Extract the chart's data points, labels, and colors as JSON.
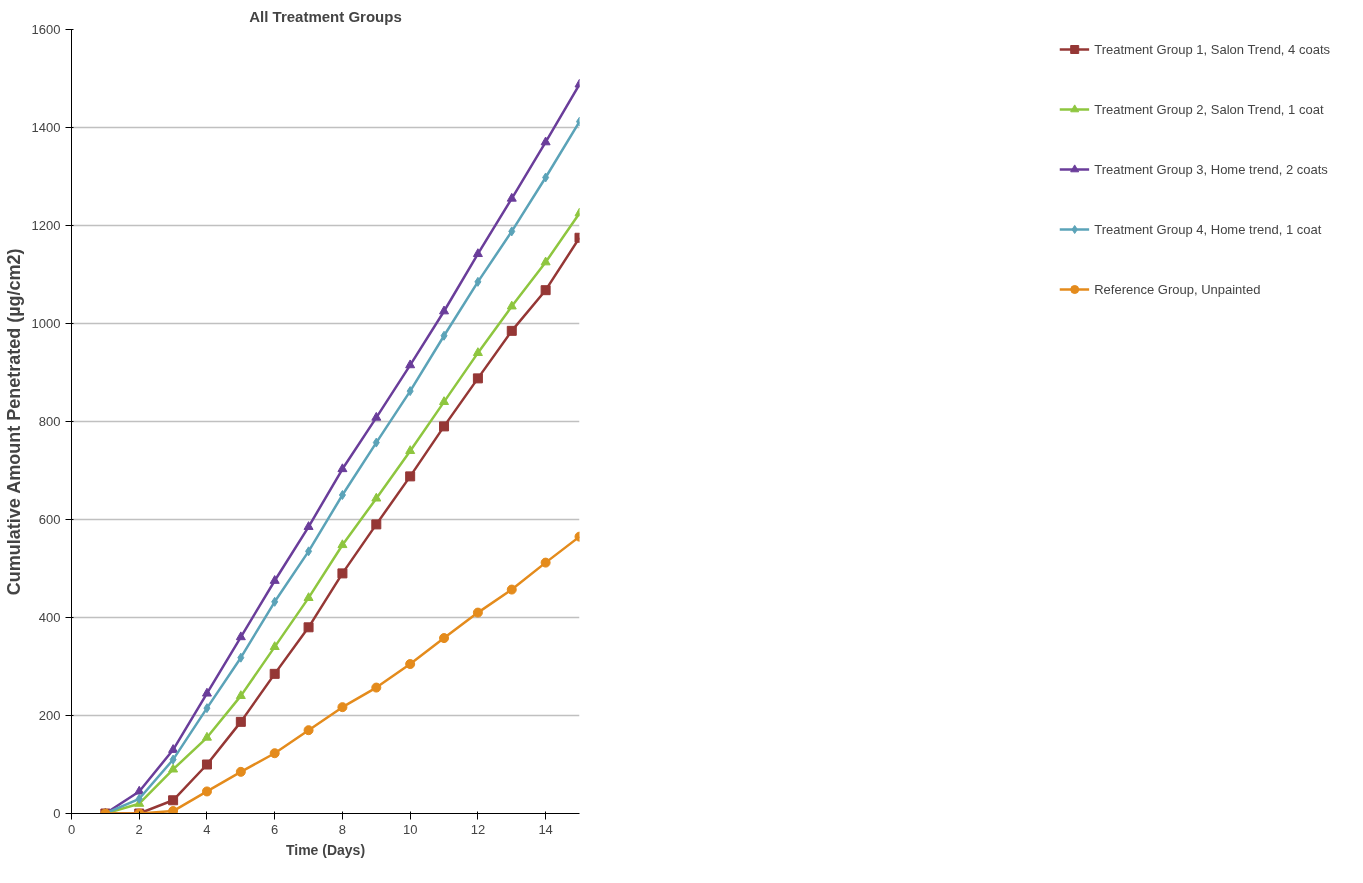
{
  "chart_data": {
    "type": "line",
    "title": "All Treatment Groups",
    "xlabel": "Time (Days)",
    "ylabel": "Cumulative Amount Penetrated (µg/cm2)",
    "x": [
      1,
      2,
      3,
      4,
      5,
      6,
      7,
      8,
      9,
      10,
      11,
      12,
      13,
      14,
      15
    ],
    "series": [
      {
        "name": "Treatment Group 1, Salon Trend, 4 coats",
        "color": "#953735",
        "marker": "square",
        "values": [
          0,
          0,
          27,
          100,
          187,
          285,
          380,
          490,
          590,
          688,
          790,
          888,
          985,
          1068,
          1175
        ]
      },
      {
        "name": "Treatment Group 2, Salon Trend, 1 coat",
        "color": "#8ec63f",
        "marker": "triangle",
        "values": [
          0,
          20,
          90,
          155,
          240,
          340,
          440,
          548,
          643,
          740,
          840,
          940,
          1035,
          1125,
          1225
        ]
      },
      {
        "name": "Treatment Group 3, Home trend, 2 coats",
        "color": "#6a3d9a",
        "marker": "triangle",
        "values": [
          0,
          45,
          130,
          245,
          360,
          475,
          585,
          703,
          808,
          915,
          1025,
          1142,
          1255,
          1370,
          1488
        ]
      },
      {
        "name": "Treatment Group 4, Home trend, 1 coat",
        "color": "#5ba3b8",
        "marker": "diamond",
        "values": [
          0,
          30,
          110,
          215,
          318,
          432,
          535,
          650,
          757,
          862,
          975,
          1085,
          1188,
          1298,
          1412
        ]
      },
      {
        "name": "Reference Group, Unpainted",
        "color": "#e48b1c",
        "marker": "circle",
        "values": [
          0,
          0,
          5,
          45,
          85,
          123,
          170,
          217,
          257,
          305,
          358,
          410,
          457,
          512,
          565
        ]
      }
    ],
    "xlim": [
      0,
      15
    ],
    "xticks": [
      0,
      2,
      4,
      6,
      8,
      10,
      12,
      14
    ],
    "ylim": [
      0,
      1600
    ],
    "yticks": [
      0,
      200,
      400,
      600,
      800,
      1000,
      1200,
      1400,
      1600
    ],
    "grid": "y",
    "legend": "right",
    "line_style": "solid"
  }
}
